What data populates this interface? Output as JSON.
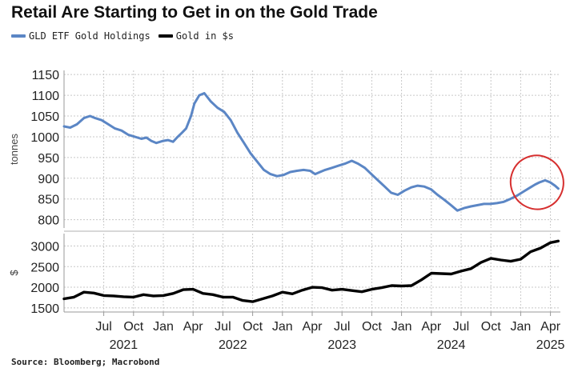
{
  "colors": {
    "gld": "#5b86c5",
    "gold": "#000000",
    "highlight": "#d62f2f",
    "grid": "#c8c8c8"
  },
  "chart_data": [
    {
      "type": "line",
      "title": "Retail Are Starting to Get in on the Gold Trade",
      "ylabel": "tonnes",
      "ylim": [
        780,
        1160
      ],
      "yticks": [
        800,
        850,
        900,
        950,
        1000,
        1050,
        1100,
        1150
      ],
      "x_range": [
        "2021-03",
        "2025-05"
      ],
      "series": [
        {
          "name": "GLD ETF Gold Holdings",
          "x": [
            "2021-03-01",
            "2021-03-20",
            "2021-04-10",
            "2021-05-01",
            "2021-05-20",
            "2021-06-05",
            "2021-06-25",
            "2021-07-15",
            "2021-08-05",
            "2021-08-25",
            "2021-09-15",
            "2021-10-05",
            "2021-10-25",
            "2021-11-10",
            "2021-11-25",
            "2021-12-10",
            "2021-12-31",
            "2022-01-15",
            "2022-01-31",
            "2022-02-15",
            "2022-02-28",
            "2022-03-10",
            "2022-03-25",
            "2022-04-05",
            "2022-04-20",
            "2022-05-05",
            "2022-05-25",
            "2022-06-15",
            "2022-07-05",
            "2022-07-25",
            "2022-08-15",
            "2022-09-05",
            "2022-09-25",
            "2022-10-15",
            "2022-11-05",
            "2022-11-25",
            "2022-12-15",
            "2023-01-05",
            "2023-01-25",
            "2023-02-15",
            "2023-03-05",
            "2023-03-25",
            "2023-04-10",
            "2023-04-25",
            "2023-05-10",
            "2023-05-31",
            "2023-06-20",
            "2023-07-10",
            "2023-07-31",
            "2023-08-20",
            "2023-09-10",
            "2023-09-30",
            "2023-10-20",
            "2023-11-10",
            "2023-11-30",
            "2023-12-20",
            "2024-01-10",
            "2024-01-31",
            "2024-02-20",
            "2024-03-10",
            "2024-03-31",
            "2024-04-20",
            "2024-05-10",
            "2024-05-31",
            "2024-06-20",
            "2024-07-10",
            "2024-07-31",
            "2024-08-20",
            "2024-09-10",
            "2024-09-30",
            "2024-10-20",
            "2024-11-10",
            "2024-11-30",
            "2024-12-20",
            "2025-01-10",
            "2025-01-31",
            "2025-02-15",
            "2025-02-28",
            "2025-03-15",
            "2025-03-31",
            "2025-04-15",
            "2025-04-25"
          ],
          "values": [
            1025,
            1022,
            1030,
            1045,
            1050,
            1045,
            1040,
            1030,
            1020,
            1015,
            1005,
            1000,
            995,
            998,
            990,
            985,
            990,
            992,
            988,
            1000,
            1010,
            1020,
            1050,
            1080,
            1100,
            1105,
            1085,
            1070,
            1060,
            1040,
            1010,
            985,
            960,
            940,
            920,
            910,
            905,
            908,
            915,
            918,
            920,
            918,
            910,
            915,
            920,
            925,
            930,
            935,
            942,
            935,
            925,
            910,
            895,
            880,
            865,
            860,
            870,
            878,
            882,
            880,
            873,
            860,
            848,
            835,
            822,
            828,
            832,
            835,
            838,
            838,
            840,
            843,
            850,
            858,
            868,
            878,
            885,
            890,
            895,
            890,
            882,
            875
          ]
        }
      ]
    },
    {
      "type": "line",
      "ylabel": "$",
      "ylim": [
        1400,
        3300
      ],
      "yticks": [
        1500,
        2000,
        2500,
        3000
      ],
      "x_range": [
        "2021-03",
        "2025-05"
      ],
      "series": [
        {
          "name": "Gold in $s",
          "x": [
            "2021-03-01",
            "2021-04-01",
            "2021-05-01",
            "2021-06-01",
            "2021-07-01",
            "2021-08-01",
            "2021-09-01",
            "2021-10-01",
            "2021-11-01",
            "2021-12-01",
            "2022-01-01",
            "2022-02-01",
            "2022-03-01",
            "2022-04-01",
            "2022-05-01",
            "2022-06-01",
            "2022-07-01",
            "2022-08-01",
            "2022-09-01",
            "2022-10-01",
            "2022-11-01",
            "2022-12-01",
            "2023-01-01",
            "2023-02-01",
            "2023-03-01",
            "2023-04-01",
            "2023-05-01",
            "2023-06-01",
            "2023-07-01",
            "2023-08-01",
            "2023-09-01",
            "2023-10-01",
            "2023-11-01",
            "2023-12-01",
            "2024-01-01",
            "2024-02-01",
            "2024-03-01",
            "2024-04-01",
            "2024-05-01",
            "2024-06-01",
            "2024-07-01",
            "2024-08-01",
            "2024-09-01",
            "2024-10-01",
            "2024-11-01",
            "2024-12-01",
            "2025-01-01",
            "2025-02-01",
            "2025-03-01",
            "2025-04-01",
            "2025-04-25"
          ],
          "values": [
            1720,
            1760,
            1880,
            1860,
            1800,
            1790,
            1770,
            1760,
            1820,
            1790,
            1800,
            1850,
            1940,
            1950,
            1850,
            1820,
            1760,
            1760,
            1680,
            1650,
            1720,
            1790,
            1880,
            1840,
            1930,
            2000,
            1990,
            1930,
            1950,
            1920,
            1890,
            1950,
            1990,
            2040,
            2030,
            2040,
            2180,
            2340,
            2330,
            2320,
            2390,
            2450,
            2600,
            2700,
            2660,
            2630,
            2680,
            2860,
            2950,
            3080,
            3120
          ]
        }
      ]
    }
  ],
  "x_ticks": [
    {
      "label": "Jul",
      "date": "2021-07"
    },
    {
      "label": "Oct",
      "date": "2021-10"
    },
    {
      "label": "Jan",
      "date": "2022-01"
    },
    {
      "label": "Apr",
      "date": "2022-04"
    },
    {
      "label": "Jul",
      "date": "2022-07"
    },
    {
      "label": "Oct",
      "date": "2022-10"
    },
    {
      "label": "Jan",
      "date": "2023-01"
    },
    {
      "label": "Apr",
      "date": "2023-04"
    },
    {
      "label": "Jul",
      "date": "2023-07"
    },
    {
      "label": "Oct",
      "date": "2023-10"
    },
    {
      "label": "Jan",
      "date": "2024-01"
    },
    {
      "label": "Apr",
      "date": "2024-04"
    },
    {
      "label": "Jul",
      "date": "2024-07"
    },
    {
      "label": "Oct",
      "date": "2024-10"
    },
    {
      "label": "Jan",
      "date": "2025-01"
    },
    {
      "label": "Apr",
      "date": "2025-04"
    }
  ],
  "year_labels": [
    {
      "label": "2021",
      "date": "2021-09"
    },
    {
      "label": "2022",
      "date": "2022-08"
    },
    {
      "label": "2023",
      "date": "2023-07"
    },
    {
      "label": "2024",
      "date": "2024-06"
    },
    {
      "label": "2025",
      "date": "2025-04"
    }
  ],
  "annotation": {
    "type": "ellipse",
    "description": "highlight",
    "date_range": [
      "2024-12-01",
      "2025-05-10"
    ],
    "value_range": [
      825,
      955
    ]
  },
  "title": "Retail Are Starting to Get in on the Gold Trade",
  "legend": {
    "gld": "GLD ETF Gold Holdings",
    "gold": "Gold in $s"
  },
  "source": "Source: Bloomberg; Macrobond"
}
